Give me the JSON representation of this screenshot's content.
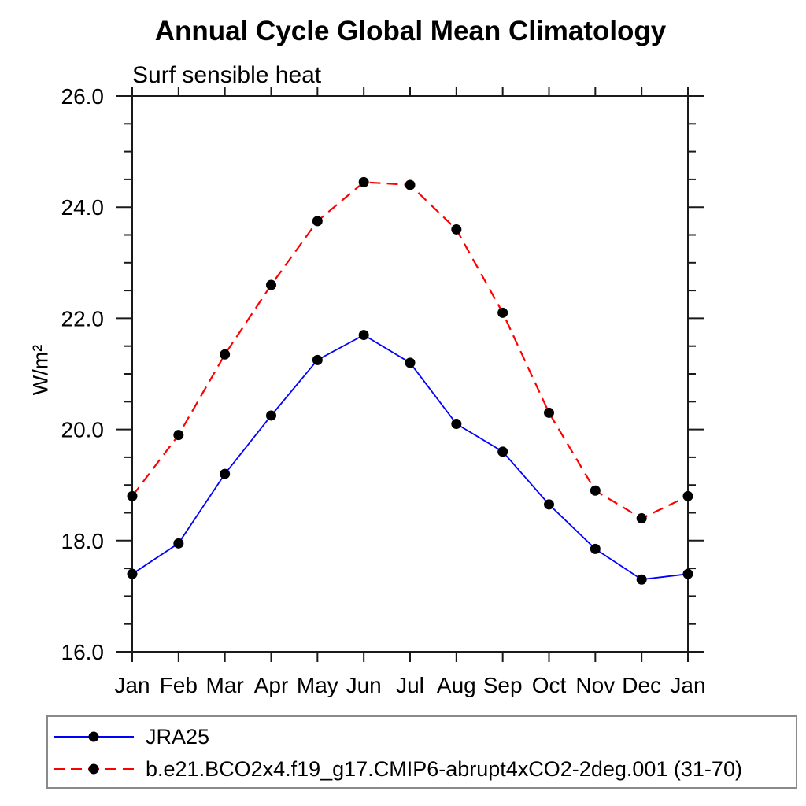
{
  "chart_data": {
    "type": "line",
    "title": "Annual Cycle Global Mean Climatology",
    "subtitle": "Surf sensible heat",
    "ylabel": "W/m²",
    "xlabel": "",
    "categories": [
      "Jan",
      "Feb",
      "Mar",
      "Apr",
      "May",
      "Jun",
      "Jul",
      "Aug",
      "Sep",
      "Oct",
      "Nov",
      "Dec",
      "Jan"
    ],
    "ylim": [
      16.0,
      26.0
    ],
    "y_major_step": 2.0,
    "y_minor_step": 0.5,
    "y_tick_labels": [
      "16.0",
      "18.0",
      "20.0",
      "22.0",
      "24.0",
      "26.0"
    ],
    "grid": false,
    "legend_position": "bottom-left-box",
    "series": [
      {
        "name": "JRA25",
        "color": "#0000ff",
        "line_style": "solid",
        "marker": "filled-circle",
        "marker_color": "#000000",
        "values": [
          17.4,
          17.95,
          19.2,
          20.25,
          21.25,
          21.7,
          21.2,
          20.1,
          19.6,
          18.65,
          17.85,
          17.3,
          17.4
        ]
      },
      {
        "name": "b.e21.BCO2x4.f19_g17.CMIP6-abrupt4xCO2-2deg.001 (31-70)",
        "color": "#ff0000",
        "line_style": "dashed",
        "marker": "filled-circle",
        "marker_color": "#000000",
        "values": [
          18.8,
          19.9,
          21.35,
          22.6,
          23.75,
          24.45,
          24.4,
          23.6,
          22.1,
          20.3,
          18.9,
          18.4,
          18.8
        ]
      }
    ]
  },
  "style": {
    "axis_color": "#1a1a1a",
    "text_color": "#000000",
    "legend_border_color": "#8a8a8a",
    "background": "#ffffff"
  }
}
